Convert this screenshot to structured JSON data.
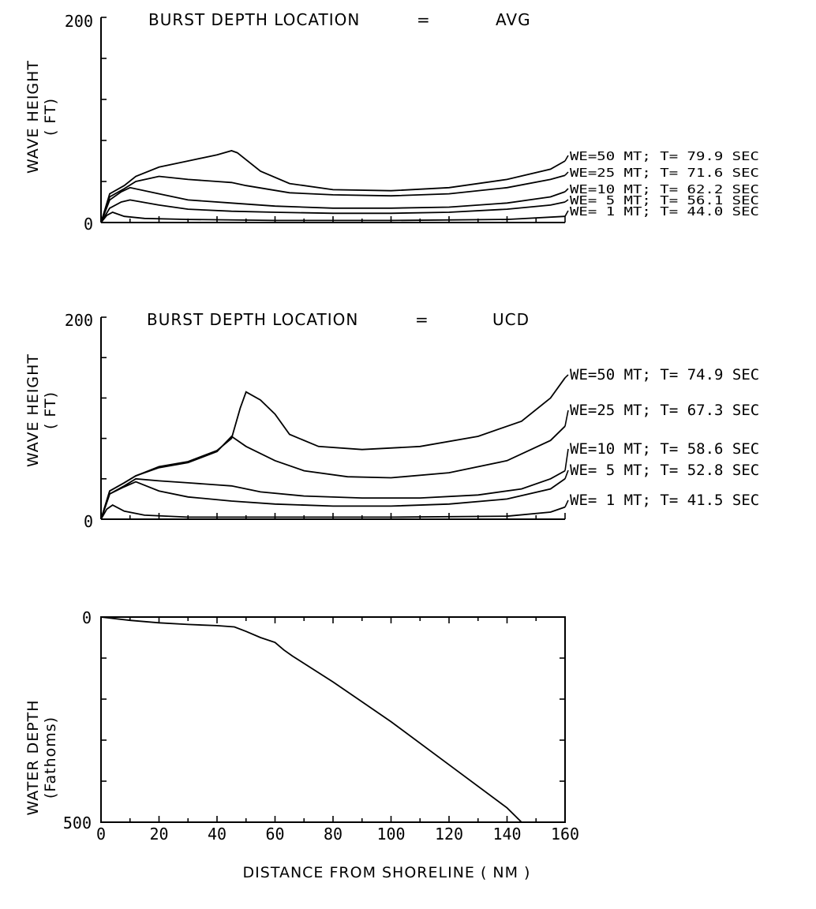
{
  "chart_data": [
    {
      "type": "line",
      "title": "BURST DEPTH LOCATION",
      "title_eq": "=",
      "title_value": "AVG",
      "ylabel_line1": "WAVE HEIGHT",
      "ylabel_line2": "( FT)",
      "xlim": [
        0,
        160
      ],
      "ylim": [
        0,
        200
      ],
      "ytick_labels": [
        "0",
        "200"
      ],
      "series": [
        {
          "name": "WE=50 MT; T= 79.9 SEC",
          "x": [
            0,
            3,
            8,
            12,
            20,
            30,
            40,
            45,
            47,
            55,
            65,
            80,
            100,
            120,
            140,
            155,
            160
          ],
          "y": [
            0,
            28,
            36,
            45,
            54,
            60,
            66,
            70,
            68,
            50,
            38,
            32,
            31,
            34,
            42,
            52,
            60
          ]
        },
        {
          "name": "WE=25 MT; T= 71.6 SEC",
          "x": [
            0,
            3,
            8,
            12,
            20,
            30,
            40,
            45,
            50,
            65,
            80,
            100,
            120,
            140,
            155,
            160
          ],
          "y": [
            0,
            25,
            33,
            40,
            45,
            42,
            40,
            39,
            36,
            29,
            27,
            26,
            28,
            34,
            42,
            46
          ]
        },
        {
          "name": "WE=10 MT; T= 62.2 SEC",
          "x": [
            0,
            3,
            7,
            10,
            20,
            30,
            45,
            60,
            80,
            100,
            120,
            140,
            155,
            160
          ],
          "y": [
            0,
            22,
            30,
            34,
            28,
            22,
            19,
            16,
            14,
            14,
            15,
            19,
            25,
            30
          ]
        },
        {
          "name": "WE= 5 MT; T= 56.1 SEC",
          "x": [
            0,
            3,
            7,
            10,
            20,
            30,
            45,
            60,
            80,
            100,
            120,
            140,
            155,
            160
          ],
          "y": [
            0,
            14,
            20,
            22,
            17,
            13,
            11,
            10,
            9,
            9,
            10,
            13,
            17,
            20
          ]
        },
        {
          "name": "WE= 1 MT; T= 44.0 SEC",
          "x": [
            0,
            2,
            4,
            8,
            15,
            30,
            60,
            100,
            140,
            160
          ],
          "y": [
            0,
            7,
            10,
            6,
            4,
            3,
            2,
            2,
            3,
            6
          ]
        }
      ]
    },
    {
      "type": "line",
      "title": "BURST DEPTH LOCATION",
      "title_eq": "=",
      "title_value": "UCD",
      "ylabel_line1": "WAVE HEIGHT",
      "ylabel_line2": "( FT)",
      "xlim": [
        0,
        160
      ],
      "ylim": [
        0,
        200
      ],
      "ytick_labels": [
        "0",
        "200"
      ],
      "series": [
        {
          "name": "WE=50 MT; T= 74.9 SEC",
          "x": [
            0,
            3,
            8,
            12,
            20,
            30,
            40,
            45,
            48,
            50,
            55,
            60,
            65,
            75,
            90,
            110,
            130,
            145,
            155,
            160
          ],
          "y": [
            0,
            28,
            36,
            43,
            52,
            57,
            68,
            80,
            110,
            126,
            118,
            104,
            84,
            72,
            69,
            72,
            82,
            97,
            120,
            140
          ]
        },
        {
          "name": "WE=25 MT; T= 67.3 SEC",
          "x": [
            0,
            3,
            8,
            12,
            20,
            30,
            40,
            45,
            50,
            60,
            70,
            85,
            100,
            120,
            140,
            155,
            160
          ],
          "y": [
            0,
            28,
            36,
            43,
            51,
            56,
            67,
            82,
            72,
            58,
            48,
            42,
            41,
            46,
            58,
            78,
            92
          ]
        },
        {
          "name": "WE=10 MT; T= 58.6 SEC",
          "x": [
            0,
            3,
            8,
            12,
            20,
            30,
            40,
            45,
            55,
            70,
            90,
            110,
            130,
            145,
            155,
            160
          ],
          "y": [
            0,
            25,
            33,
            40,
            38,
            36,
            34,
            33,
            27,
            23,
            21,
            21,
            24,
            30,
            40,
            48
          ]
        },
        {
          "name": "WE= 5 MT; T= 52.8 SEC",
          "x": [
            0,
            3,
            8,
            12,
            20,
            30,
            45,
            60,
            80,
            100,
            120,
            140,
            155,
            160
          ],
          "y": [
            0,
            25,
            32,
            37,
            28,
            22,
            18,
            15,
            13,
            13,
            15,
            20,
            30,
            40
          ]
        },
        {
          "name": "WE= 1 MT; T= 41.5 SEC",
          "x": [
            0,
            2,
            4,
            8,
            15,
            30,
            60,
            100,
            140,
            155,
            160
          ],
          "y": [
            0,
            10,
            14,
            8,
            4,
            2,
            2,
            2,
            3,
            7,
            12
          ]
        }
      ]
    },
    {
      "type": "line",
      "title": "",
      "ylabel_line1": "WATER DEPTH",
      "ylabel_line2": "(Fathoms)",
      "xlabel": "DISTANCE FROM SHORELINE ( NM )",
      "xlim": [
        0,
        160
      ],
      "ylim": [
        0,
        500
      ],
      "y_inverted": true,
      "ytick_labels": [
        "0",
        "500"
      ],
      "xtick_labels": [
        "0",
        "20",
        "40",
        "60",
        "80",
        "100",
        "120",
        "140",
        "160"
      ],
      "series": [
        {
          "x": [
            0,
            10,
            20,
            30,
            40,
            46,
            50,
            55,
            60,
            63,
            66,
            80,
            100,
            120,
            140,
            145
          ],
          "y": [
            0,
            8,
            14,
            18,
            21,
            24,
            35,
            50,
            62,
            80,
            95,
            158,
            255,
            360,
            465,
            500
          ]
        }
      ]
    }
  ]
}
